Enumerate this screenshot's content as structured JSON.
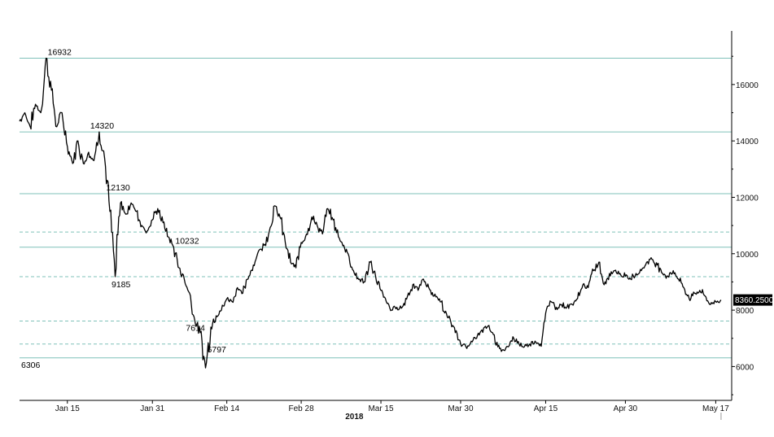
{
  "chart_data": {
    "type": "line",
    "title": "",
    "xlabel": "2018",
    "ylabel": "",
    "x_start": "2018-01-06",
    "x_end": "2018-05-20",
    "ylim": [
      4800,
      17900
    ],
    "x_ticks": [
      {
        "label": "Jan 15",
        "date": "2018-01-15"
      },
      {
        "label": "Jan 31",
        "date": "2018-01-31"
      },
      {
        "label": "Feb 14",
        "date": "2018-02-14"
      },
      {
        "label": "Feb 28",
        "date": "2018-02-28"
      },
      {
        "label": "Mar 15",
        "date": "2018-03-15"
      },
      {
        "label": "Mar 30",
        "date": "2018-03-30"
      },
      {
        "label": "Apr 15",
        "date": "2018-04-15"
      },
      {
        "label": "Apr 30",
        "date": "2018-04-30"
      },
      {
        "label": "May 17",
        "date": "2018-05-17"
      }
    ],
    "y_ticks": [
      {
        "label": "6000",
        "value": 6000
      },
      {
        "label": "8000",
        "value": 8000
      },
      {
        "label": "10000",
        "value": 10000
      },
      {
        "label": "12000",
        "value": 12000
      },
      {
        "label": "14000",
        "value": 14000
      },
      {
        "label": "16000",
        "value": 16000
      }
    ],
    "series": [
      {
        "color": "#000000",
        "points": [
          [
            "2018-01-06",
            14700
          ],
          [
            "2018-01-07",
            15000
          ],
          [
            "2018-01-08",
            14500
          ],
          [
            "2018-01-09",
            15300
          ],
          [
            "2018-01-10",
            15000
          ],
          [
            "2018-01-11",
            16932
          ],
          [
            "2018-01-12",
            15800
          ],
          [
            "2018-01-13",
            14500
          ],
          [
            "2018-01-14",
            15000
          ],
          [
            "2018-01-15",
            13800
          ],
          [
            "2018-01-16",
            13200
          ],
          [
            "2018-01-17",
            14000
          ],
          [
            "2018-01-18",
            13200
          ],
          [
            "2018-01-19",
            13600
          ],
          [
            "2018-01-20",
            13300
          ],
          [
            "2018-01-21",
            14320
          ],
          [
            "2018-01-22",
            13400
          ],
          [
            "2018-01-23",
            11500
          ],
          [
            "2018-01-24",
            9185
          ],
          [
            "2018-01-25",
            11800
          ],
          [
            "2018-01-26",
            11400
          ],
          [
            "2018-01-27",
            11800
          ],
          [
            "2018-01-28",
            11500
          ],
          [
            "2018-01-29",
            11000
          ],
          [
            "2018-01-30",
            10800
          ],
          [
            "2018-01-31",
            11200
          ],
          [
            "2018-02-01",
            11600
          ],
          [
            "2018-02-02",
            11100
          ],
          [
            "2018-02-03",
            10600
          ],
          [
            "2018-02-04",
            10232
          ],
          [
            "2018-02-05",
            9500
          ],
          [
            "2018-02-06",
            9100
          ],
          [
            "2018-02-07",
            8600
          ],
          [
            "2018-02-08",
            7614
          ],
          [
            "2018-02-09",
            7200
          ],
          [
            "2018-02-10",
            5950
          ],
          [
            "2018-02-11",
            7400
          ],
          [
            "2018-02-12",
            7800
          ],
          [
            "2018-02-13",
            8000
          ],
          [
            "2018-02-14",
            8400
          ],
          [
            "2018-02-15",
            8300
          ],
          [
            "2018-02-16",
            8800
          ],
          [
            "2018-02-17",
            8600
          ],
          [
            "2018-02-18",
            9100
          ],
          [
            "2018-02-19",
            9600
          ],
          [
            "2018-02-20",
            10100
          ],
          [
            "2018-02-21",
            10300
          ],
          [
            "2018-02-22",
            10800
          ],
          [
            "2018-02-23",
            11700
          ],
          [
            "2018-02-24",
            11300
          ],
          [
            "2018-02-25",
            10400
          ],
          [
            "2018-02-26",
            9700
          ],
          [
            "2018-02-27",
            9500
          ],
          [
            "2018-02-28",
            10400
          ],
          [
            "2018-03-01",
            10700
          ],
          [
            "2018-03-02",
            11300
          ],
          [
            "2018-03-03",
            11000
          ],
          [
            "2018-03-04",
            10700
          ],
          [
            "2018-03-05",
            11600
          ],
          [
            "2018-03-06",
            11200
          ],
          [
            "2018-03-07",
            10600
          ],
          [
            "2018-03-08",
            10300
          ],
          [
            "2018-03-09",
            9900
          ],
          [
            "2018-03-10",
            9300
          ],
          [
            "2018-03-11",
            9100
          ],
          [
            "2018-03-12",
            9000
          ],
          [
            "2018-03-13",
            9700
          ],
          [
            "2018-03-14",
            9200
          ],
          [
            "2018-03-15",
            8700
          ],
          [
            "2018-03-16",
            8300
          ],
          [
            "2018-03-17",
            8000
          ],
          [
            "2018-03-18",
            8100
          ],
          [
            "2018-03-19",
            8100
          ],
          [
            "2018-03-20",
            8500
          ],
          [
            "2018-03-21",
            8900
          ],
          [
            "2018-03-22",
            8700
          ],
          [
            "2018-03-23",
            9100
          ],
          [
            "2018-03-24",
            8800
          ],
          [
            "2018-03-25",
            8500
          ],
          [
            "2018-03-26",
            8400
          ],
          [
            "2018-03-27",
            7900
          ],
          [
            "2018-03-28",
            7700
          ],
          [
            "2018-03-29",
            7200
          ],
          [
            "2018-03-30",
            6800
          ],
          [
            "2018-03-31",
            6700
          ],
          [
            "2018-04-01",
            6900
          ],
          [
            "2018-04-02",
            7000
          ],
          [
            "2018-04-03",
            7300
          ],
          [
            "2018-04-04",
            7400
          ],
          [
            "2018-04-05",
            7200
          ],
          [
            "2018-04-06",
            6700
          ],
          [
            "2018-04-07",
            6600
          ],
          [
            "2018-04-08",
            6700
          ],
          [
            "2018-04-09",
            7000
          ],
          [
            "2018-04-10",
            6800
          ],
          [
            "2018-04-11",
            6700
          ],
          [
            "2018-04-12",
            6800
          ],
          [
            "2018-04-13",
            6900
          ],
          [
            "2018-04-14",
            6800
          ],
          [
            "2018-04-15",
            7900
          ],
          [
            "2018-04-16",
            8300
          ],
          [
            "2018-04-17",
            8100
          ],
          [
            "2018-04-18",
            8200
          ],
          [
            "2018-04-19",
            8100
          ],
          [
            "2018-04-20",
            8200
          ],
          [
            "2018-04-21",
            8400
          ],
          [
            "2018-04-22",
            8900
          ],
          [
            "2018-04-23",
            8800
          ],
          [
            "2018-04-24",
            9400
          ],
          [
            "2018-04-25",
            9700
          ],
          [
            "2018-04-26",
            8900
          ],
          [
            "2018-04-27",
            9300
          ],
          [
            "2018-04-28",
            9400
          ],
          [
            "2018-04-29",
            9300
          ],
          [
            "2018-04-30",
            9200
          ],
          [
            "2018-05-01",
            9100
          ],
          [
            "2018-05-02",
            9300
          ],
          [
            "2018-05-03",
            9400
          ],
          [
            "2018-05-04",
            9700
          ],
          [
            "2018-05-05",
            9800
          ],
          [
            "2018-05-06",
            9600
          ],
          [
            "2018-05-07",
            9300
          ],
          [
            "2018-05-08",
            9200
          ],
          [
            "2018-05-09",
            9400
          ],
          [
            "2018-05-10",
            9100
          ],
          [
            "2018-05-11",
            8800
          ],
          [
            "2018-05-12",
            8400
          ],
          [
            "2018-05-13",
            8600
          ],
          [
            "2018-05-14",
            8700
          ],
          [
            "2018-05-15",
            8500
          ],
          [
            "2018-05-16",
            8200
          ],
          [
            "2018-05-17",
            8300
          ],
          [
            "2018-05-18",
            8360.25
          ]
        ]
      }
    ],
    "horizontal_lines": [
      {
        "value": 16932,
        "style": "solid",
        "label": "16932",
        "label_date": "2018-01-11"
      },
      {
        "value": 14320,
        "style": "solid",
        "label": "14320",
        "label_date": "2018-01-19"
      },
      {
        "value": 12130,
        "style": "solid",
        "label": "12130",
        "label_date": "2018-01-22"
      },
      {
        "value": 10770,
        "style": "dashed",
        "label": ""
      },
      {
        "value": 10232,
        "style": "solid",
        "label": "10232",
        "label_date": "2018-02-04"
      },
      {
        "value": 9185,
        "style": "dashed",
        "label": "9185",
        "label_date": "2018-01-23"
      },
      {
        "value": 7614,
        "style": "dashed",
        "label": "7614",
        "label_date": "2018-02-06"
      },
      {
        "value": 6797,
        "style": "dashed",
        "label": "6797",
        "label_date": "2018-02-10"
      },
      {
        "value": 6306,
        "style": "solid",
        "label": "6306",
        "label_date": "2018-01-06"
      }
    ],
    "last_price": {
      "value": 8360.25,
      "label": "8360.2500"
    },
    "line_color": "#7fc1b9",
    "grid": false
  }
}
